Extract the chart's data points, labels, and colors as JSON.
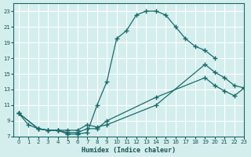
{
  "xlabel": "Humidex (Indice chaleur)",
  "bg_color": "#d4eeee",
  "grid_color": "#ffffff",
  "line_color": "#1a6b6b",
  "xlim": [
    -0.5,
    23
  ],
  "ylim": [
    7,
    24
  ],
  "xticks": [
    0,
    1,
    2,
    3,
    4,
    5,
    6,
    7,
    8,
    9,
    10,
    11,
    12,
    13,
    14,
    15,
    16,
    17,
    18,
    19,
    20,
    21,
    22,
    23
  ],
  "yticks": [
    7,
    9,
    11,
    13,
    15,
    17,
    19,
    21,
    23
  ],
  "curve1_x": [
    0,
    1,
    2,
    3,
    4,
    5,
    6,
    7,
    8,
    9,
    10,
    11,
    12,
    13,
    14,
    15,
    16,
    17,
    18,
    19,
    20
  ],
  "curve1_y": [
    10,
    8.5,
    8,
    7.8,
    7.8,
    7.3,
    7.3,
    7.5,
    11,
    14,
    19.5,
    20.5,
    22.5,
    23,
    23,
    22.5,
    21,
    19.5,
    18.5,
    18,
    17
  ],
  "curve2_x": [
    0,
    2,
    3,
    4,
    5,
    6,
    7,
    8,
    9,
    14,
    19,
    20,
    21,
    22,
    23
  ],
  "curve2_y": [
    10,
    8,
    7.8,
    7.8,
    7.8,
    7.8,
    8.5,
    8.2,
    8.5,
    11,
    16.2,
    15.2,
    14.5,
    13.5,
    13.2
  ],
  "curve3_x": [
    0,
    2,
    3,
    4,
    5,
    6,
    7,
    8,
    9,
    14,
    19,
    20,
    21,
    22,
    23
  ],
  "curve3_y": [
    10,
    8,
    7.8,
    7.8,
    7.5,
    7.5,
    8.0,
    8.0,
    9.0,
    12,
    14.5,
    13.5,
    12.8,
    12.2,
    13.2
  ]
}
